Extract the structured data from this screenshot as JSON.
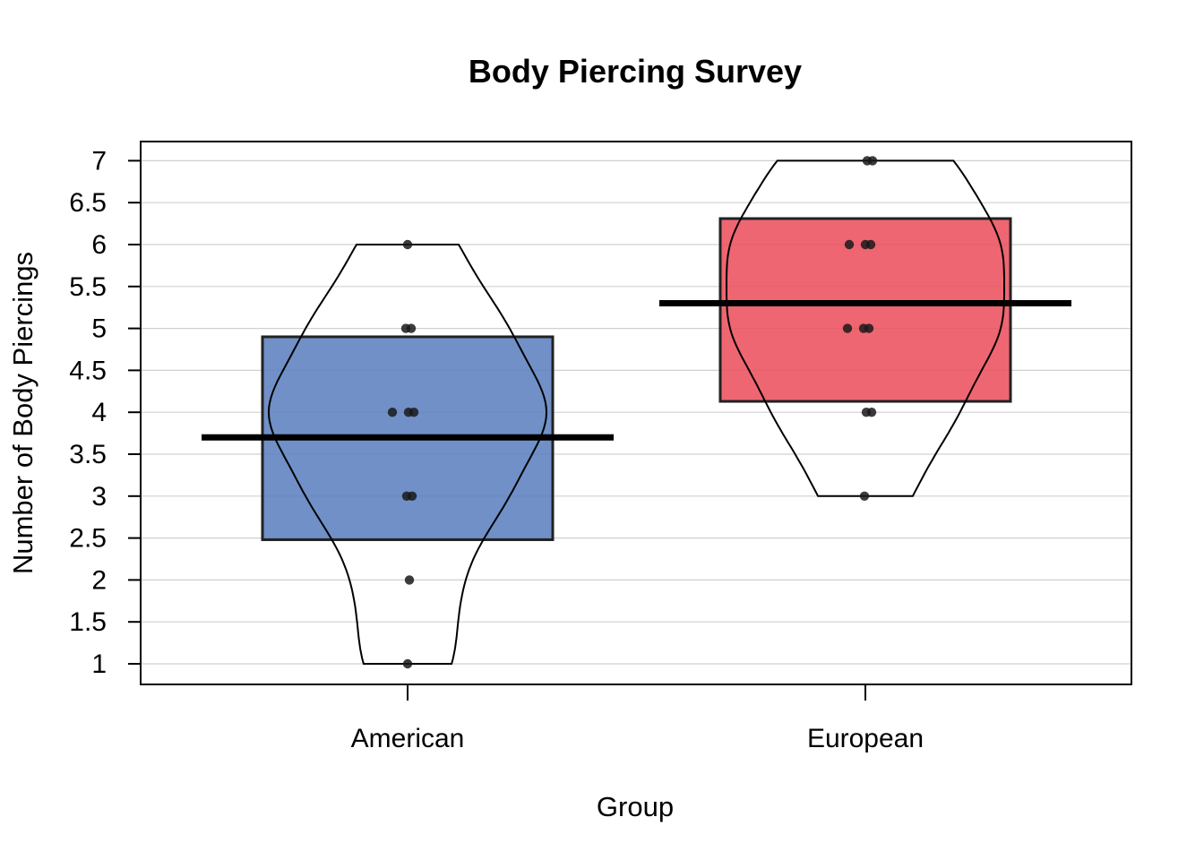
{
  "chart_data": {
    "type": "pirate",
    "title": "Body Piercing Survey",
    "xlabel": "Group",
    "ylabel": "Number of Body Piercings",
    "ylim": [
      0.88,
      7.12
    ],
    "yticks": [
      "1",
      "1.5",
      "2",
      "2.5",
      "3",
      "3.5",
      "4",
      "4.5",
      "5",
      "5.5",
      "6",
      "6.5",
      "7"
    ],
    "grid": true,
    "groups": [
      {
        "name": "American",
        "color": "#5b7fbf",
        "mean": 3.7,
        "ci": [
          2.48,
          4.9
        ],
        "points": [
          1,
          2,
          3,
          3,
          4,
          4,
          4,
          5,
          5,
          6
        ],
        "range": [
          1,
          6
        ]
      },
      {
        "name": "European",
        "color": "#ec4f5c",
        "mean": 5.3,
        "ci": [
          4.13,
          6.31
        ],
        "points": [
          3,
          4,
          4,
          5,
          5,
          5,
          6,
          6,
          6,
          7,
          7
        ],
        "range": [
          3,
          7
        ]
      }
    ]
  }
}
